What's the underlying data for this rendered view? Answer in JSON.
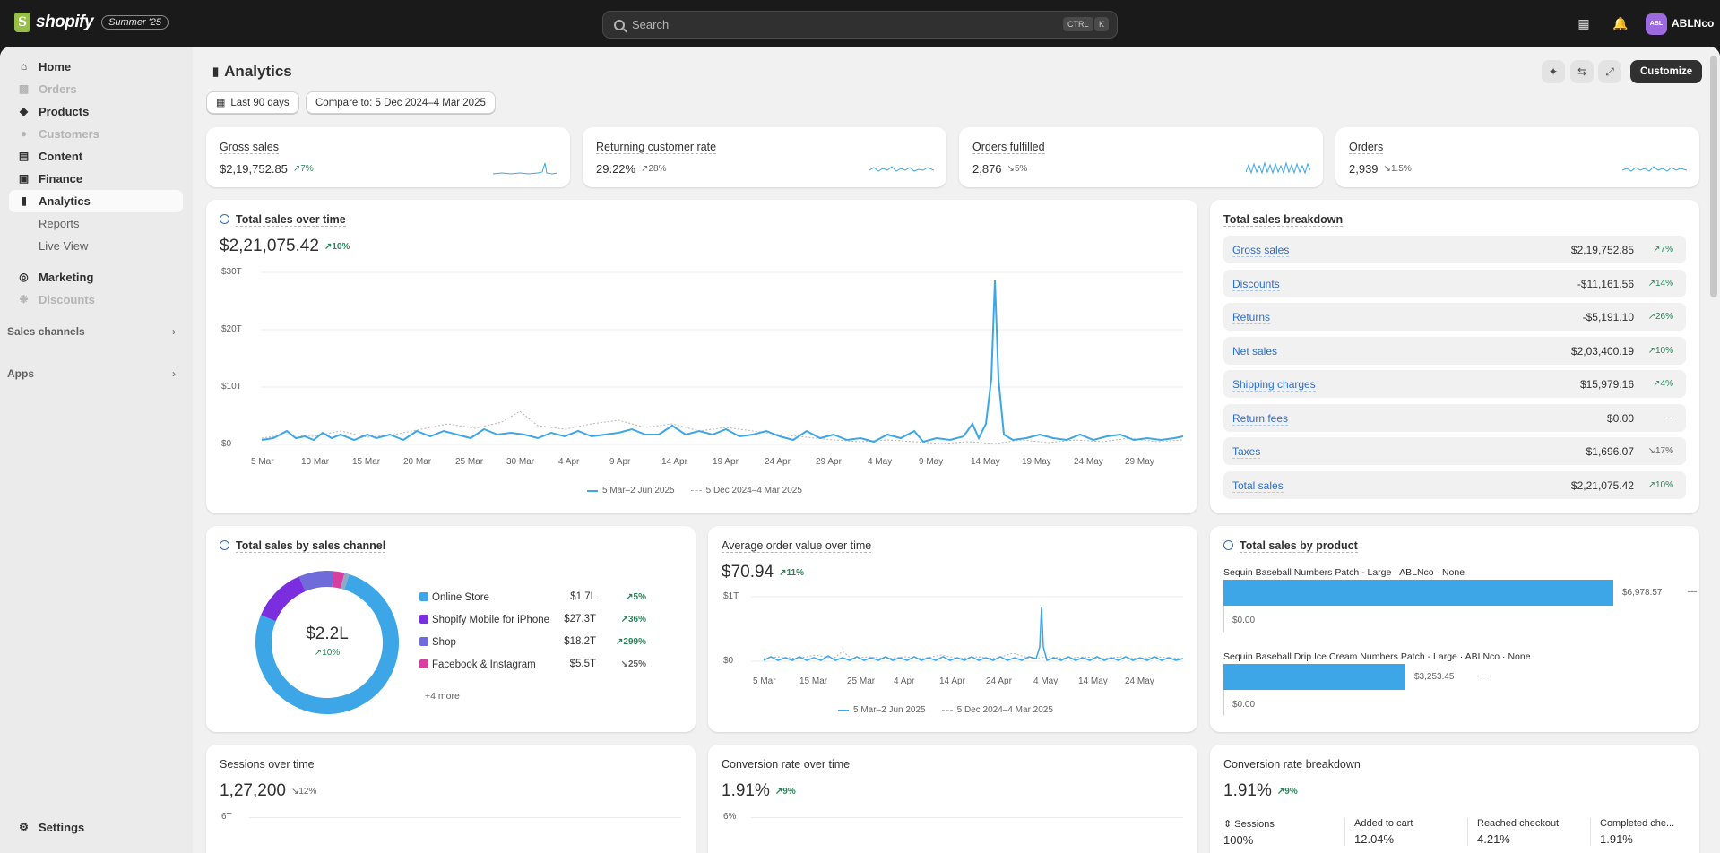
{
  "topbar": {
    "logo_text": "shopify",
    "badge": "Summer '25",
    "search_placeholder": "Search",
    "shortcut_ctrl": "CTRL",
    "shortcut_key": "K",
    "avatar_initials": "ABL",
    "store_name": "ABLNco"
  },
  "sidebar": {
    "items": [
      {
        "label": "Home"
      },
      {
        "label": "Orders"
      },
      {
        "label": "Products"
      },
      {
        "label": "Customers"
      },
      {
        "label": "Content"
      },
      {
        "label": "Finance"
      },
      {
        "label": "Analytics"
      },
      {
        "label": "Reports"
      },
      {
        "label": "Live View"
      },
      {
        "label": "Marketing"
      },
      {
        "label": "Discounts"
      }
    ],
    "sales_channels": "Sales channels",
    "apps": "Apps",
    "settings": "Settings"
  },
  "page": {
    "title": "Analytics",
    "date_range": "Last 90 days",
    "compare": "Compare to: 5 Dec 2024–4 Mar 2025",
    "customize": "Customize"
  },
  "kpis": [
    {
      "title": "Gross sales",
      "value": "$2,19,752.85",
      "delta": "7%",
      "dir": "up"
    },
    {
      "title": "Returning customer rate",
      "value": "29.22%",
      "delta": "28%",
      "dir": "up"
    },
    {
      "title": "Orders fulfilled",
      "value": "2,876",
      "delta": "5%",
      "dir": "down"
    },
    {
      "title": "Orders",
      "value": "2,939",
      "delta": "1.5%",
      "dir": "down"
    }
  ],
  "total_sales": {
    "title": "Total sales over time",
    "value": "$2,21,075.42",
    "delta": "10%",
    "y_ticks": [
      "$30T",
      "$20T",
      "$10T",
      "$0"
    ],
    "x_ticks": [
      "5 Mar",
      "10 Mar",
      "15 Mar",
      "20 Mar",
      "25 Mar",
      "30 Mar",
      "4 Apr",
      "9 Apr",
      "14 Apr",
      "19 Apr",
      "24 Apr",
      "29 Apr",
      "4 May",
      "9 May",
      "14 May",
      "19 May",
      "24 May",
      "29 May"
    ],
    "legend_current": "5 Mar–2 Jun 2025",
    "legend_previous": "5 Dec 2024–4 Mar 2025"
  },
  "breakdown": {
    "title": "Total sales breakdown",
    "rows": [
      {
        "label": "Gross sales",
        "value": "$2,19,752.85",
        "delta": "7%",
        "dir": "up"
      },
      {
        "label": "Discounts",
        "value": "-$11,161.56",
        "delta": "14%",
        "dir": "up"
      },
      {
        "label": "Returns",
        "value": "-$5,191.10",
        "delta": "26%",
        "dir": "up"
      },
      {
        "label": "Net sales",
        "value": "$2,03,400.19",
        "delta": "10%",
        "dir": "up"
      },
      {
        "label": "Shipping charges",
        "value": "$15,979.16",
        "delta": "4%",
        "dir": "up"
      },
      {
        "label": "Return fees",
        "value": "$0.00",
        "delta": "—",
        "dir": "flat"
      },
      {
        "label": "Taxes",
        "value": "$1,696.07",
        "delta": "17%",
        "dir": "down"
      },
      {
        "label": "Total sales",
        "value": "$2,21,075.42",
        "delta": "10%",
        "dir": "up"
      }
    ]
  },
  "channel": {
    "title": "Total sales by sales channel",
    "center_value": "$2.2L",
    "center_delta": "10%",
    "rows": [
      {
        "label": "Online Store",
        "value": "$1.7L",
        "delta": "5%",
        "dir": "up",
        "color": "#3ca6e7"
      },
      {
        "label": "Shopify Mobile for iPhone",
        "value": "$27.3T",
        "delta": "36%",
        "dir": "up",
        "color": "#7a2ee0"
      },
      {
        "label": "Shop",
        "value": "$18.2T",
        "delta": "299%",
        "dir": "up",
        "color": "#6f6bdb"
      },
      {
        "label": "Facebook & Instagram",
        "value": "$5.5T",
        "delta": "25%",
        "dir": "down",
        "color": "#d63fa0"
      }
    ],
    "more": "+4 more"
  },
  "aov": {
    "title": "Average order value over time",
    "value": "$70.94",
    "delta": "11%",
    "y_ticks": [
      "$1T",
      "$0"
    ],
    "x_ticks": [
      "5 Mar",
      "15 Mar",
      "25 Mar",
      "4 Apr",
      "14 Apr",
      "24 Apr",
      "4 May",
      "14 May",
      "24 May"
    ],
    "legend_current": "5 Mar–2 Jun 2025",
    "legend_previous": "5 Dec 2024–4 Mar 2025"
  },
  "products": {
    "title": "Total sales by product",
    "items": [
      {
        "label": "Sequin Baseball Numbers Patch - Large · ABLNco · None",
        "value": "$6,978.57",
        "prev": "$0.00",
        "delta": "—",
        "share": 1.0
      },
      {
        "label": "Sequin Baseball Drip Ice Cream Numbers Patch - Large · ABLNco · None",
        "value": "$3,253.45",
        "prev": "$0.00",
        "delta": "—",
        "share": 0.466
      }
    ]
  },
  "sessions": {
    "title": "Sessions over time",
    "value": "1,27,200",
    "delta": "12%",
    "y_tick": "6T"
  },
  "conversion": {
    "title": "Conversion rate over time",
    "value": "1.91%",
    "delta": "9%",
    "y_tick": "6%"
  },
  "conv_breakdown": {
    "title": "Conversion rate breakdown",
    "value": "1.91%",
    "delta": "9%",
    "cols": [
      {
        "label": "Sessions",
        "value": "100%"
      },
      {
        "label": "Added to cart",
        "value": "12.04%"
      },
      {
        "label": "Reached checkout",
        "value": "4.21%"
      },
      {
        "label": "Completed che...",
        "value": "1.91%"
      }
    ]
  },
  "colors": {
    "accent": "#3ca6e7",
    "positive": "#29845a",
    "link": "#2c6ecb"
  }
}
